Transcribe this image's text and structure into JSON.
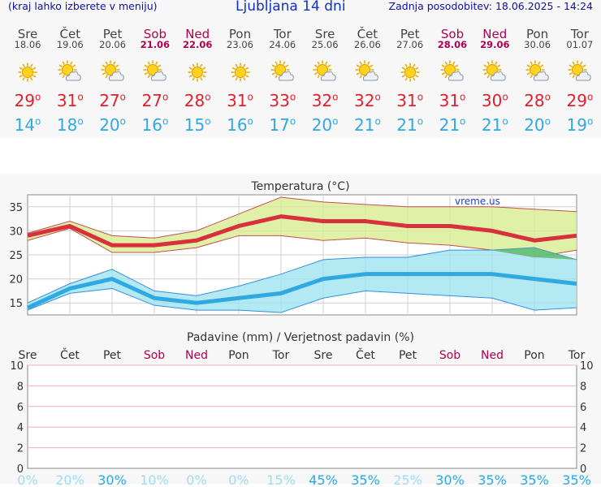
{
  "header": {
    "hint": "(kraj lahko izberete v meniju)",
    "title": "Ljubljana 14 dni",
    "updated": "Zadnja posodobitev: 18.06.2025 - 14:24"
  },
  "days": [
    {
      "name": "Sre",
      "date": "18.06",
      "weekend": false,
      "icon": "sunny-icon",
      "tmax": 29,
      "tmin": 14
    },
    {
      "name": "Čet",
      "date": "19.06",
      "weekend": false,
      "icon": "partly-cloudy-icon",
      "tmax": 31,
      "tmin": 18
    },
    {
      "name": "Pet",
      "date": "20.06",
      "weekend": false,
      "icon": "partly-cloudy-icon",
      "tmax": 27,
      "tmin": 20
    },
    {
      "name": "Sob",
      "date": "21.06",
      "weekend": true,
      "icon": "partly-cloudy-icon",
      "tmax": 27,
      "tmin": 16
    },
    {
      "name": "Ned",
      "date": "22.06",
      "weekend": true,
      "icon": "sunny-icon",
      "tmax": 28,
      "tmin": 15
    },
    {
      "name": "Pon",
      "date": "23.06",
      "weekend": false,
      "icon": "sunny-icon",
      "tmax": 31,
      "tmin": 16
    },
    {
      "name": "Tor",
      "date": "24.06",
      "weekend": false,
      "icon": "partly-cloudy-icon",
      "tmax": 33,
      "tmin": 17
    },
    {
      "name": "Sre",
      "date": "25.06",
      "weekend": false,
      "icon": "partly-cloudy-icon",
      "tmax": 32,
      "tmin": 20
    },
    {
      "name": "Čet",
      "date": "26.06",
      "weekend": false,
      "icon": "partly-cloudy-icon",
      "tmax": 32,
      "tmin": 21
    },
    {
      "name": "Pet",
      "date": "27.06",
      "weekend": false,
      "icon": "sunny-icon",
      "tmax": 31,
      "tmin": 21
    },
    {
      "name": "Sob",
      "date": "28.06",
      "weekend": true,
      "icon": "partly-cloudy-icon",
      "tmax": 31,
      "tmin": 21
    },
    {
      "name": "Ned",
      "date": "29.06",
      "weekend": true,
      "icon": "partly-cloudy-icon",
      "tmax": 30,
      "tmin": 21
    },
    {
      "name": "Pon",
      "date": "30.06",
      "weekend": false,
      "icon": "partly-cloudy-icon",
      "tmax": 28,
      "tmin": 20
    },
    {
      "name": "Tor",
      "date": "01.07",
      "weekend": false,
      "icon": "partly-cloudy-icon",
      "tmax": 29,
      "tmin": 19
    }
  ],
  "colors": {
    "max": "#e0202e",
    "min": "#30a8e0",
    "weekend": "#b00050",
    "maxBand": "#d8ec90",
    "minBand": "#a0e4f0"
  },
  "chart_data": [
    {
      "type": "line",
      "title": "Temperatura (°C)",
      "watermark": "vreme.us",
      "categories": [
        "Sre",
        "Čet",
        "Pet",
        "Sob",
        "Ned",
        "Pon",
        "Tor",
        "Sre",
        "Čet",
        "Pet",
        "Sob",
        "Ned",
        "Pon",
        "Tor"
      ],
      "ylim": [
        12.5,
        37.5
      ],
      "yticks": [
        15,
        20,
        25,
        30,
        35
      ],
      "series": [
        {
          "values": [
            29,
            31,
            27,
            27,
            28,
            31,
            33,
            32,
            32,
            31,
            31,
            30,
            28,
            29
          ],
          "band_upper": [
            29.5,
            32,
            29,
            28.5,
            30,
            33.5,
            37,
            36,
            35.5,
            35,
            35,
            35,
            34.5,
            34
          ],
          "band_lower": [
            28,
            30.5,
            25.5,
            25.5,
            26.5,
            29,
            29,
            28,
            28.5,
            27.5,
            27,
            26,
            24.5,
            26
          ]
        },
        {
          "values": [
            14,
            18,
            20,
            16,
            15,
            16,
            17,
            20,
            21,
            21,
            21,
            21,
            20,
            19
          ],
          "band_upper": [
            15,
            19,
            22,
            17.5,
            16.5,
            18.5,
            21,
            24,
            24.5,
            24.5,
            26,
            26,
            26.5,
            24
          ],
          "band_lower": [
            13.5,
            17,
            18,
            14.5,
            13.5,
            13.5,
            13,
            16,
            17.5,
            17,
            16.5,
            16,
            13.5,
            14
          ]
        }
      ]
    },
    {
      "type": "bar",
      "title": "Padavine (mm) / Verjetnost padavin (%)",
      "categories": [
        "Sre",
        "Čet",
        "Pet",
        "Sob",
        "Ned",
        "Pon",
        "Tor",
        "Sre",
        "Čet",
        "Pet",
        "Sob",
        "Ned",
        "Pon",
        "Tor"
      ],
      "ylim": [
        0,
        10
      ],
      "yticks": [
        0,
        2,
        4,
        6,
        8,
        10
      ],
      "values": [
        0,
        0,
        0,
        0,
        0,
        0,
        0,
        0,
        0,
        0,
        0,
        0,
        0,
        0
      ],
      "probability": [
        "0%",
        "20%",
        "30%",
        "10%",
        "0%",
        "0%",
        "15%",
        "45%",
        "35%",
        "25%",
        "30%",
        "35%",
        "35%",
        "35%"
      ]
    }
  ]
}
